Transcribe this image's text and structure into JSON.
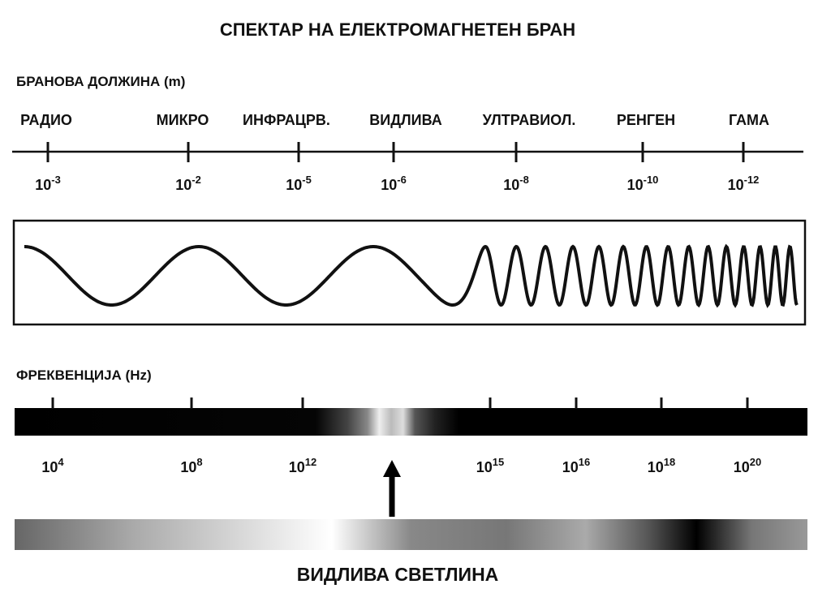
{
  "title": "СПЕКТАР НА ЕЛЕКТРОМАГНЕТЕН БРАН",
  "wavelength": {
    "label": "БРАНОВА ДОЛЖИНА (m)",
    "bands": [
      "РАДИО",
      "МИКРО",
      "ИНФРАЦРВ.",
      "ВИДЛИВА",
      "УЛТРАВИОЛ.",
      "РЕНГЕН",
      "ГАМА"
    ],
    "ticks": [
      {
        "base": "10",
        "exp": "-3"
      },
      {
        "base": "10",
        "exp": "-2"
      },
      {
        "base": "10",
        "exp": "-5"
      },
      {
        "base": "10",
        "exp": "-6"
      },
      {
        "base": "10",
        "exp": "-8"
      },
      {
        "base": "10",
        "exp": "-10"
      },
      {
        "base": "10",
        "exp": "-12"
      }
    ]
  },
  "frequency": {
    "label": "ФРЕКВЕНЦИЈА (Hz)",
    "ticks": [
      {
        "base": "10",
        "exp": "4"
      },
      {
        "base": "10",
        "exp": "8"
      },
      {
        "base": "10",
        "exp": "12"
      },
      {
        "base": "10",
        "exp": "15"
      },
      {
        "base": "10",
        "exp": "16"
      },
      {
        "base": "10",
        "exp": "18"
      },
      {
        "base": "10",
        "exp": "20"
      }
    ]
  },
  "visible_label": "ВИДЛИВА СВЕТЛИНА"
}
